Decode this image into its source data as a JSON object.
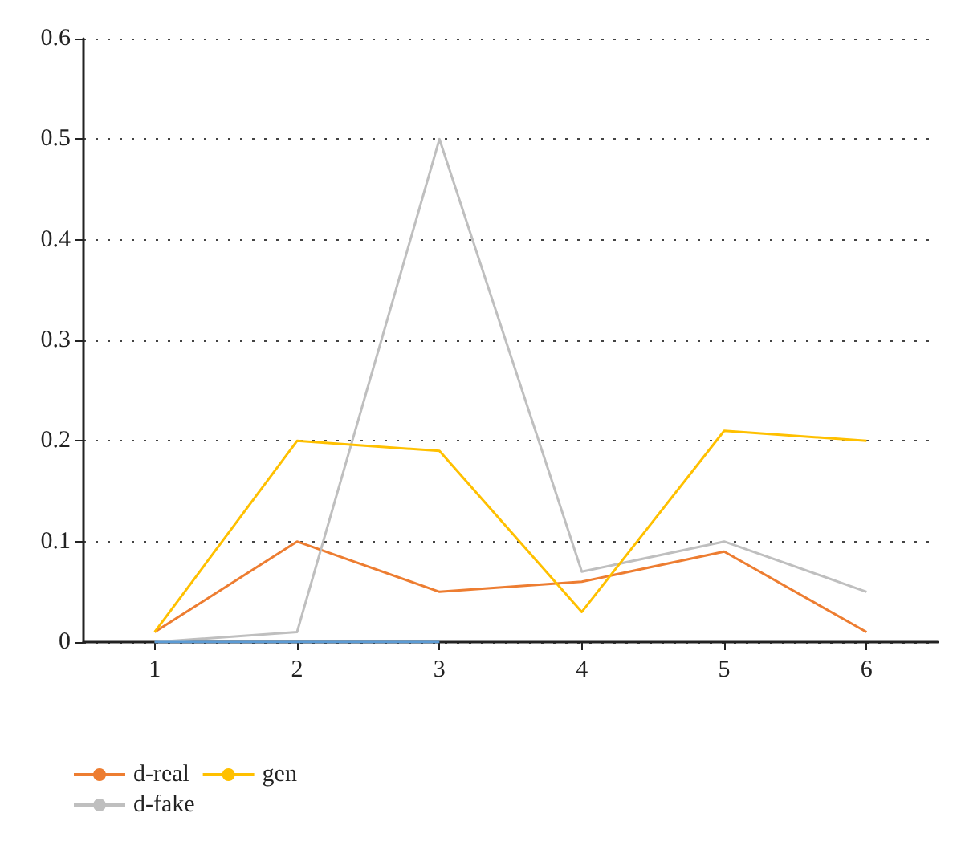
{
  "chart_data": {
    "type": "line",
    "categories": [
      "1",
      "2",
      "3",
      "4",
      "5",
      "6"
    ],
    "series": [
      {
        "name": "d-real",
        "color": "#ed7d31",
        "values": [
          0.01,
          0.1,
          0.05,
          0.06,
          0.09,
          0.01
        ]
      },
      {
        "name": "d-fake",
        "color": "#bfbfbf",
        "values": [
          0,
          0.01,
          0.5,
          0.07,
          0.1,
          0.05
        ]
      },
      {
        "name": "gen",
        "color": "#ffc000",
        "values": [
          0.01,
          0.2,
          0.19,
          0.03,
          0.21,
          0.2
        ]
      },
      {
        "color": "#5b9bd5",
        "values": [
          0,
          0,
          0,
          null,
          null,
          null
        ]
      }
    ],
    "ylim": [
      0,
      0.6
    ],
    "yticks": [
      0,
      0.1,
      0.2,
      0.3,
      0.4,
      0.5,
      0.6
    ],
    "grid": "y",
    "legend": "bottom left",
    "marker": "none",
    "line_style": "solid"
  }
}
